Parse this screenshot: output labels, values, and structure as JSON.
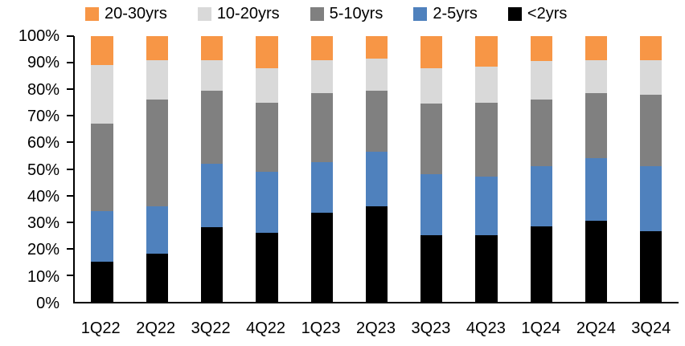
{
  "chart_data": {
    "type": "bar",
    "subtype": "stacked-100-percent",
    "title": "",
    "xlabel": "",
    "ylabel": "",
    "ylim": [
      0,
      100
    ],
    "grid": false,
    "legend_position": "top",
    "y_tick_labels": [
      "0%",
      "10%",
      "20%",
      "30%",
      "40%",
      "50%",
      "60%",
      "70%",
      "80%",
      "90%",
      "100%"
    ],
    "categories": [
      "1Q22",
      "2Q22",
      "3Q22",
      "4Q22",
      "1Q23",
      "2Q23",
      "3Q23",
      "4Q23",
      "1Q24",
      "2Q24",
      "3Q24"
    ],
    "series": [
      {
        "name": "<2yrs",
        "color": "#000000",
        "values": [
          15,
          18,
          28,
          26,
          33.5,
          36,
          25,
          25,
          28.5,
          30.5,
          26.5
        ]
      },
      {
        "name": "2-5yrs",
        "color": "#4F81BD",
        "values": [
          19,
          18,
          24,
          23,
          19,
          20.5,
          23,
          22,
          22.5,
          23.5,
          24.5
        ]
      },
      {
        "name": "5-10yrs",
        "color": "#808080",
        "values": [
          33,
          40,
          27.5,
          26,
          26,
          23,
          26.5,
          28,
          25,
          24.5,
          27
        ]
      },
      {
        "name": "10-20yrs",
        "color": "#D9D9D9",
        "values": [
          22,
          15,
          11.5,
          13,
          12.5,
          12,
          13.5,
          13.5,
          14.5,
          12.5,
          13
        ]
      },
      {
        "name": "20-30yrs",
        "color": "#F79646",
        "values": [
          11,
          9,
          9,
          12,
          9,
          8.5,
          12,
          11.5,
          9.5,
          9,
          9
        ]
      }
    ],
    "legend_order_left_to_right": [
      "20-30yrs",
      "10-20yrs",
      "5-10yrs",
      "2-5yrs",
      "<2yrs"
    ]
  }
}
